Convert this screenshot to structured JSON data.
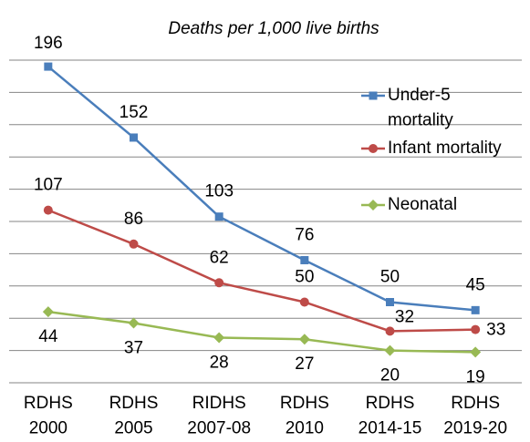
{
  "chart_data": {
    "type": "line",
    "title": "Deaths per 1,000 live births",
    "categories": [
      "RDHS 2000",
      "RDHS 2005",
      "RIDHS 2007-08",
      "RDHS 2010",
      "RDHS 2014-15",
      "RDHS 2019-20"
    ],
    "series": [
      {
        "name": "Under-5 mortality",
        "color": "#4a7ebb",
        "marker": "square",
        "values": [
          196,
          152,
          103,
          76,
          50,
          45
        ]
      },
      {
        "name": "Infant mortality",
        "color": "#be4b48",
        "marker": "circle",
        "values": [
          107,
          86,
          62,
          50,
          32,
          33
        ]
      },
      {
        "name": "Neonatal",
        "color": "#98b954",
        "marker": "diamond",
        "values": [
          44,
          37,
          28,
          27,
          20,
          19
        ]
      }
    ],
    "ylim": [
      0,
      200
    ],
    "yticks": [
      0,
      20,
      40,
      60,
      80,
      100,
      120,
      140,
      160,
      180,
      200
    ],
    "grid": true
  }
}
